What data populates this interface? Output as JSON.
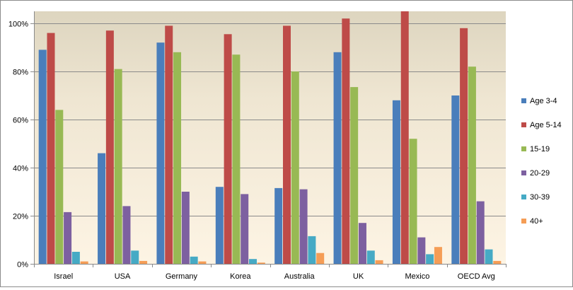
{
  "chart_data": {
    "type": "bar",
    "title": "",
    "xlabel": "",
    "ylabel": "",
    "ylim": [
      0,
      105
    ],
    "yticks": [
      0,
      20,
      40,
      60,
      80,
      100
    ],
    "ytick_labels": [
      "0%",
      "20%",
      "40%",
      "60%",
      "80%",
      "100%"
    ],
    "grid": true,
    "legend_position": "right",
    "categories": [
      "Israel",
      "USA",
      "Germany",
      "Korea",
      "Australia",
      "UK",
      "Mexico",
      "OECD Avg"
    ],
    "series": [
      {
        "name": "Age 3-4",
        "color": "#4a7ebb",
        "values": [
          89,
          46,
          92,
          32,
          31.5,
          88,
          68,
          70
        ]
      },
      {
        "name": "Age 5-14",
        "color": "#be4b48",
        "values": [
          96,
          97,
          99,
          95.5,
          99,
          102,
          105,
          98
        ]
      },
      {
        "name": "15-19",
        "color": "#98b954",
        "values": [
          64,
          81,
          88,
          87,
          80,
          73.5,
          52,
          82
        ]
      },
      {
        "name": "20-29",
        "color": "#7d60a0",
        "values": [
          21.5,
          24,
          30,
          29,
          31,
          17,
          11,
          26
        ]
      },
      {
        "name": "30-39",
        "color": "#46aac5",
        "values": [
          5,
          5.5,
          3,
          2,
          11.5,
          5.5,
          4,
          6
        ]
      },
      {
        "name": "40+",
        "color": "#f59d56",
        "values": [
          1,
          1.2,
          1,
          0.5,
          4.5,
          1.5,
          7,
          1.2
        ]
      }
    ]
  }
}
